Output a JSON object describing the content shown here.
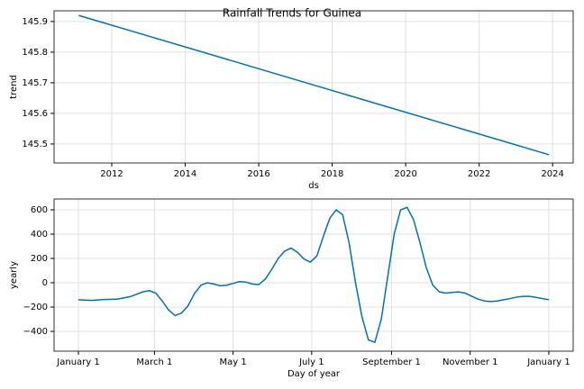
{
  "chart_data": [
    {
      "type": "line",
      "title": "Rainfall Trends for Guinea",
      "xlabel": "ds",
      "ylabel": "trend",
      "x": [
        2011.1,
        2023.9
      ],
      "values": [
        145.92,
        145.465
      ],
      "color": "#0072b2",
      "xlim": [
        2010.43,
        2024.56
      ],
      "ylim": [
        145.438,
        145.935
      ],
      "xticks": [
        2012,
        2014,
        2016,
        2018,
        2020,
        2022,
        2024
      ],
      "yticks": [
        145.5,
        145.6,
        145.7,
        145.8,
        145.9
      ],
      "grid": true
    },
    {
      "type": "line",
      "xlabel": "Day of year",
      "ylabel": "yearly",
      "x": [
        0,
        10,
        20,
        30,
        40,
        50,
        55,
        60,
        65,
        70,
        75,
        80,
        85,
        90,
        95,
        100,
        105,
        110,
        115,
        120,
        125,
        130,
        135,
        140,
        145,
        150,
        155,
        160,
        165,
        170,
        175,
        180,
        185,
        190,
        195,
        200,
        205,
        210,
        215,
        220,
        225,
        230,
        235,
        240,
        245,
        250,
        255,
        260,
        265,
        270,
        275,
        280,
        285,
        290,
        295,
        300,
        305,
        310,
        315,
        320,
        325,
        330,
        335,
        340,
        345,
        350,
        355,
        360,
        365
      ],
      "values": [
        -140,
        -145,
        -138,
        -135,
        -115,
        -75,
        -65,
        -85,
        -150,
        -225,
        -270,
        -250,
        -190,
        -90,
        -20,
        0,
        -10,
        -25,
        -20,
        -5,
        10,
        5,
        -10,
        -15,
        30,
        110,
        200,
        260,
        285,
        250,
        195,
        170,
        220,
        380,
        530,
        600,
        560,
        330,
        0,
        -280,
        -470,
        -490,
        -300,
        50,
        400,
        600,
        620,
        520,
        330,
        120,
        -20,
        -75,
        -85,
        -80,
        -75,
        -85,
        -110,
        -135,
        -150,
        -155,
        -150,
        -140,
        -130,
        -118,
        -112,
        -112,
        -120,
        -130,
        -140
      ],
      "color": "#0072b2",
      "xlim": [
        -18.9,
        383.9
      ],
      "ylim": [
        -563,
        689
      ],
      "xticks": [
        {
          "value": 0,
          "label": "January 1"
        },
        {
          "value": 59,
          "label": "March 1"
        },
        {
          "value": 120,
          "label": "May 1"
        },
        {
          "value": 181,
          "label": "July 1"
        },
        {
          "value": 243,
          "label": "September 1"
        },
        {
          "value": 304,
          "label": "November 1"
        },
        {
          "value": 365,
          "label": "January 1"
        }
      ],
      "yticks": [
        {
          "value": -400,
          "label": "−400"
        },
        {
          "value": -200,
          "label": "−200"
        },
        0,
        200,
        400,
        600
      ],
      "grid": true
    }
  ]
}
